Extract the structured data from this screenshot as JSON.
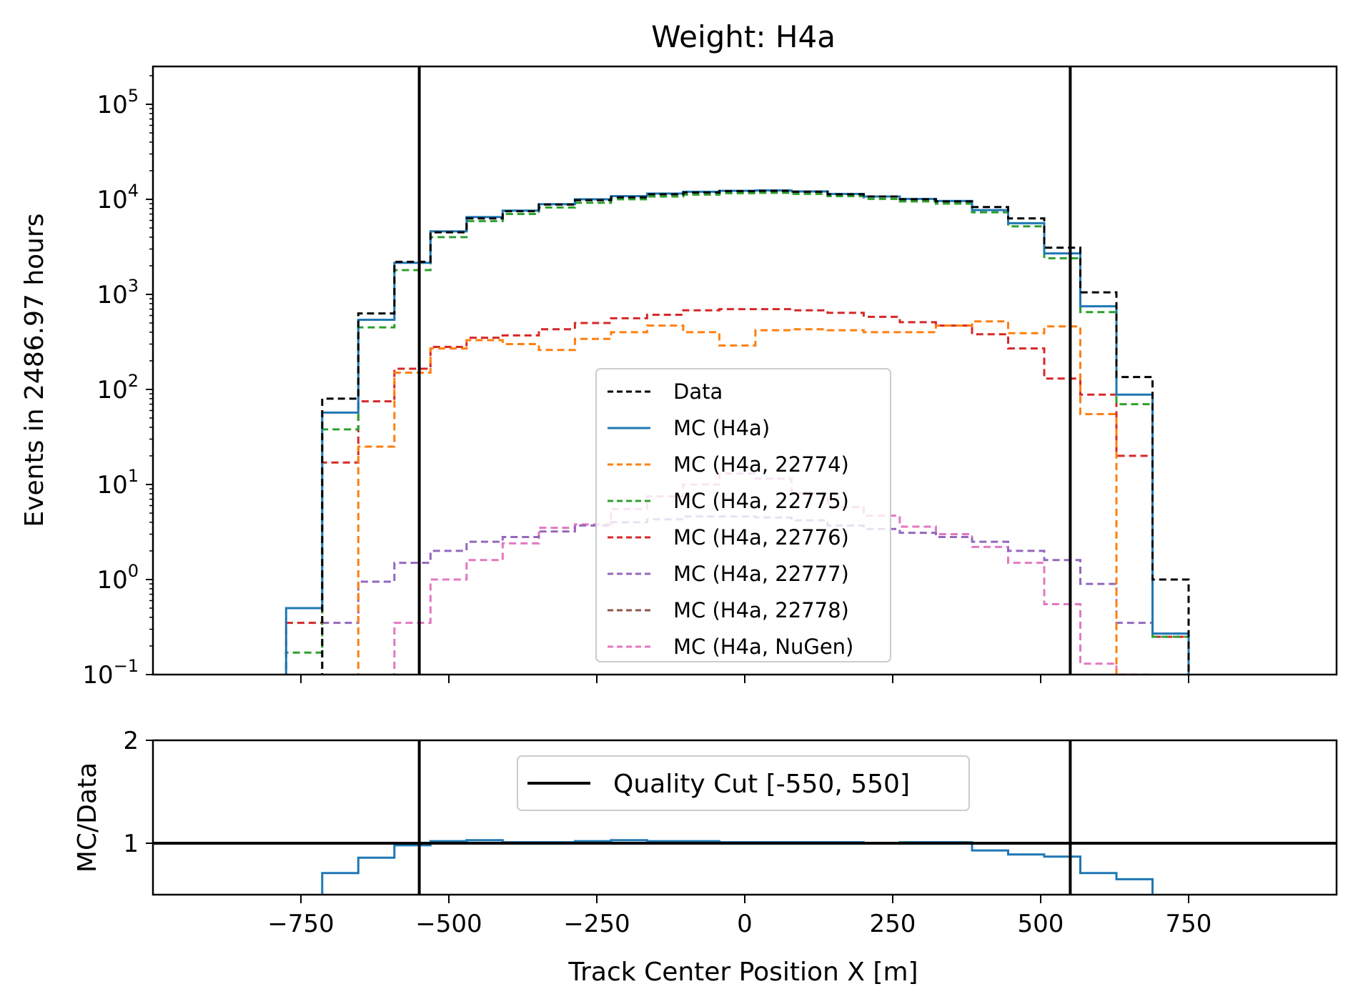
{
  "chart_data": [
    {
      "type": "step-histogram",
      "title": "Weight: H4a",
      "xlabel": "",
      "ylabel": "Events in 2486.97 hours",
      "yscale": "log",
      "xlim": [
        -1000,
        1000
      ],
      "ylim": [
        0.1,
        250000
      ],
      "x_ticks": [
        -750,
        -500,
        -250,
        0,
        250,
        500,
        750
      ],
      "y_ticks": [
        {
          "value": 0.1,
          "base": "10",
          "exp": "−1"
        },
        {
          "value": 1,
          "base": "10",
          "exp": "0"
        },
        {
          "value": 10,
          "base": "10",
          "exp": "1"
        },
        {
          "value": 100,
          "base": "10",
          "exp": "2"
        },
        {
          "value": 1000,
          "base": "10",
          "exp": "3"
        },
        {
          "value": 10000,
          "base": "10",
          "exp": "4"
        },
        {
          "value": 100000,
          "base": "10",
          "exp": "5"
        }
      ],
      "bin_edges": [
        -775,
        -714,
        -653,
        -592,
        -531,
        -470,
        -409,
        -348,
        -287,
        -226,
        -165,
        -104,
        -43,
        18,
        79,
        140,
        201,
        262,
        323,
        384,
        445,
        506,
        567,
        628,
        689,
        750,
        811
      ],
      "vlines": [
        -550,
        550
      ],
      "legend_position": "center",
      "series": [
        {
          "name": "Data",
          "color": "#000000",
          "dash": "10,6",
          "values": [
            null,
            80,
            630,
            2200,
            4500,
            6300,
            7500,
            8800,
            9800,
            10500,
            11300,
            11800,
            12200,
            12300,
            12000,
            11300,
            10700,
            10000,
            9500,
            8300,
            6300,
            3100,
            1050,
            135,
            1.0,
            null
          ]
        },
        {
          "name": "MC (H4a)",
          "color": "#1f77b4",
          "dash": "",
          "values": [
            0.5,
            57,
            540,
            2150,
            4600,
            6500,
            7600,
            8900,
            10000,
            10800,
            11500,
            12000,
            12300,
            12400,
            12100,
            11400,
            10700,
            10100,
            9600,
            7700,
            5600,
            2700,
            750,
            88,
            0.27,
            null
          ]
        },
        {
          "name": "MC (H4a, 22774)",
          "color": "#ff7f0e",
          "dash": "10,6",
          "values": [
            null,
            null,
            25,
            150,
            270,
            330,
            300,
            260,
            340,
            400,
            470,
            400,
            290,
            420,
            430,
            420,
            400,
            400,
            470,
            520,
            390,
            460,
            55,
            null,
            null,
            null
          ]
        },
        {
          "name": "MC (H4a, 22775)",
          "color": "#2ca02c",
          "dash": "10,6",
          "values": [
            0.17,
            38,
            450,
            1800,
            4000,
            5900,
            7000,
            8200,
            9200,
            10000,
            10700,
            11200,
            11600,
            11700,
            11400,
            10800,
            10100,
            9500,
            9000,
            7300,
            5200,
            2400,
            650,
            70,
            0.25,
            null
          ]
        },
        {
          "name": "MC (H4a, 22776)",
          "color": "#d62728",
          "dash": "10,6",
          "values": [
            0.35,
            17,
            75,
            165,
            280,
            350,
            370,
            430,
            500,
            560,
            610,
            680,
            700,
            700,
            680,
            640,
            580,
            510,
            470,
            380,
            270,
            130,
            88,
            20,
            0.25,
            null
          ]
        },
        {
          "name": "MC (H4a, 22777)",
          "color": "#9467bd",
          "dash": "10,6",
          "values": [
            null,
            0.35,
            0.95,
            1.5,
            2.0,
            2.5,
            2.8,
            3.2,
            3.7,
            4.0,
            4.3,
            4.6,
            4.6,
            4.5,
            4.2,
            3.7,
            3.4,
            3.1,
            2.8,
            2.5,
            2.0,
            1.6,
            0.9,
            0.35,
            0.27,
            null
          ]
        },
        {
          "name": "MC (H4a, 22778)",
          "color": "#8c564b",
          "dash": "10,6",
          "values": []
        },
        {
          "name": "MC (H4a, NuGen)",
          "color": "#e377c2",
          "dash": "10,6",
          "values": [
            null,
            null,
            null,
            0.35,
            1.0,
            1.6,
            2.4,
            3.5,
            3.8,
            5.5,
            7.5,
            10.0,
            13.0,
            11.5,
            8.0,
            5.8,
            4.7,
            3.6,
            3.0,
            2.2,
            1.5,
            0.55,
            0.13,
            0.1,
            null,
            null
          ]
        }
      ],
      "legend": [
        "Data",
        "MC (H4a)",
        "MC (H4a, 22774)",
        "MC (H4a, 22775)",
        "MC (H4a, 22776)",
        "MC (H4a, 22777)",
        "MC (H4a, 22778)",
        "MC (H4a, NuGen)"
      ]
    },
    {
      "type": "step-ratio",
      "title": "",
      "xlabel": "Track Center Position X [m]",
      "ylabel": "MC/Data",
      "xlim": [
        -1000,
        1000
      ],
      "ylim": [
        0.5,
        2
      ],
      "x_ticks": [
        -750,
        -500,
        -250,
        0,
        250,
        500,
        750
      ],
      "y_ticks": [
        1,
        2
      ],
      "hline": 1,
      "vlines": [
        -550,
        550
      ],
      "legend_position": "upper center",
      "legend": [
        "Quality Cut [-550, 550]"
      ],
      "series": [
        {
          "name": "MC/Data",
          "color": "#1f77b4",
          "values": [
            null,
            0.71,
            0.86,
            0.98,
            1.02,
            1.03,
            1.01,
            1.01,
            1.02,
            1.03,
            1.02,
            1.02,
            1.01,
            1.01,
            1.01,
            1.01,
            1.0,
            1.01,
            1.01,
            0.93,
            0.89,
            0.87,
            0.71,
            0.65,
            0.27,
            null
          ]
        }
      ]
    }
  ]
}
